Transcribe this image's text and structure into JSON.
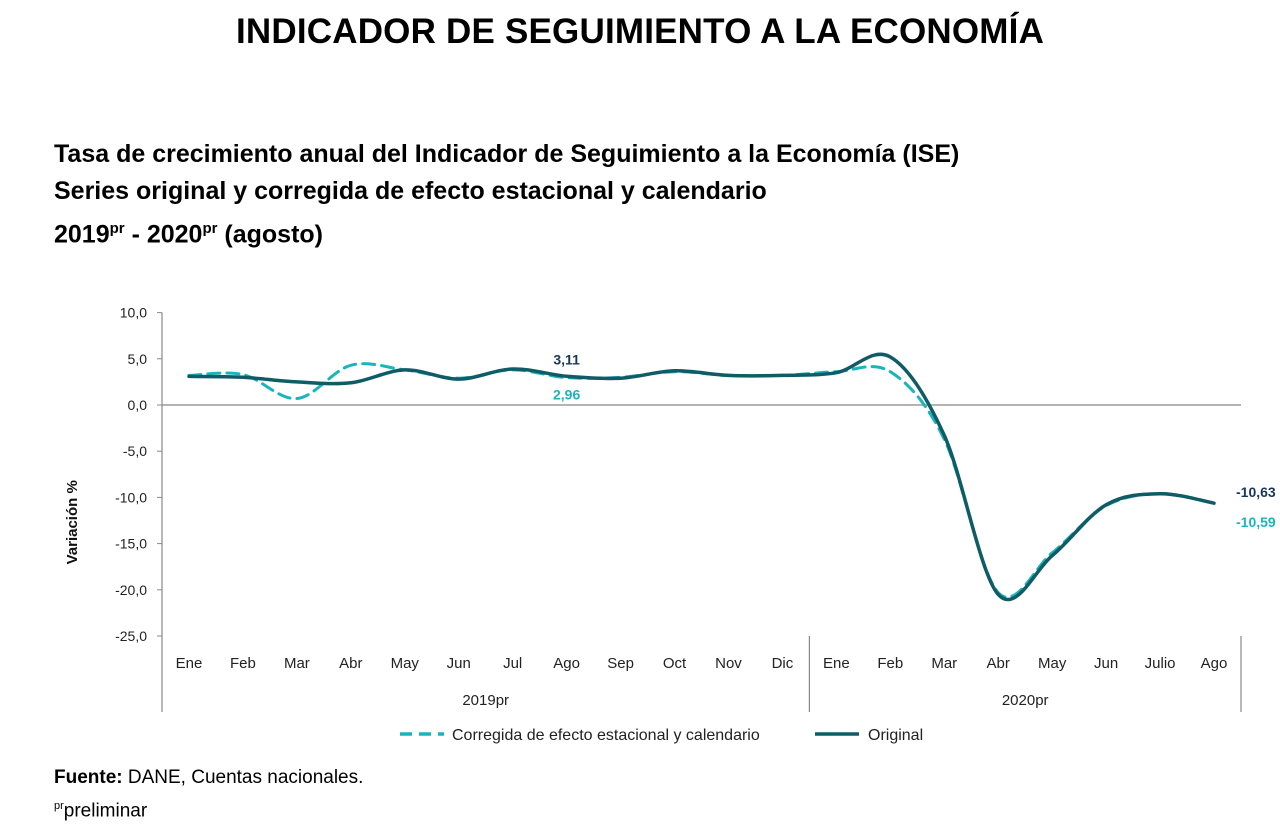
{
  "page": {
    "main_title": "INDICADOR DE SEGUIMIENTO A LA ECONOMÍA",
    "subtitle_line1": "Tasa de crecimiento anual del Indicador de Seguimiento a la Economía (ISE)",
    "subtitle_line2": "Series original y corregida de efecto estacional y calendario",
    "subtitle_line3_a": "2019",
    "subtitle_line3_sup1": "pr",
    "subtitle_line3_b": " - 2020",
    "subtitle_line3_sup2": "pr",
    "subtitle_line3_c": " (agosto)",
    "footer_source_label": "Fuente:",
    "footer_source_text": " DANE, Cuentas nacionales.",
    "footer_note_sup": "pr",
    "footer_note_text": "preliminar"
  },
  "colors": {
    "original": "#0f5c66",
    "corrected": "#1ab5bc",
    "axis": "#888888",
    "label_dark": "#17375e"
  },
  "chart_data": {
    "type": "line",
    "title": "Tasa de crecimiento anual del Indicador de Seguimiento a la Economía (ISE)",
    "xlabel": "",
    "ylabel": "Variación %",
    "ylim": [
      -25,
      10
    ],
    "yticks": [
      10,
      5,
      0,
      -5,
      -10,
      -15,
      -20,
      -25
    ],
    "ytick_labels": [
      "10,0",
      "5,0",
      "0,0",
      "-5,0",
      "-10,0",
      "-15,0",
      "-20,0",
      "-25,0"
    ],
    "categories": [
      "Ene",
      "Feb",
      "Mar",
      "Abr",
      "May",
      "Jun",
      "Jul",
      "Ago",
      "Sep",
      "Oct",
      "Nov",
      "Dic",
      "Ene",
      "Feb",
      "Mar",
      "Abr",
      "May",
      "Jun",
      "Julio",
      "Ago"
    ],
    "groups": [
      {
        "label": "2019pr",
        "start": 0,
        "end": 11
      },
      {
        "label": "2020pr",
        "start": 12,
        "end": 19
      }
    ],
    "series": [
      {
        "name": "Corregida de efecto estacional y calendario",
        "style": "dashed",
        "values": [
          3.2,
          3.3,
          0.7,
          4.3,
          3.8,
          2.9,
          3.8,
          2.96,
          3.0,
          3.6,
          3.2,
          3.2,
          3.6,
          3.6,
          -3.7,
          -20.3,
          -16.0,
          -10.9,
          -9.6,
          -10.59
        ]
      },
      {
        "name": "Original",
        "style": "solid",
        "values": [
          3.1,
          3.0,
          2.5,
          2.4,
          3.8,
          2.8,
          3.9,
          3.11,
          2.9,
          3.7,
          3.2,
          3.2,
          3.5,
          5.2,
          -3.3,
          -20.5,
          -16.3,
          -10.8,
          -9.6,
          -10.63
        ]
      }
    ],
    "annotations": [
      {
        "text": "3,11",
        "index": 7,
        "series": "Original",
        "position": "above"
      },
      {
        "text": "2,96",
        "index": 7,
        "series": "Corregida de efecto estacional y calendario",
        "position": "below"
      },
      {
        "text": "-10,63",
        "index": 19,
        "series": "Original",
        "position": "right-above"
      },
      {
        "text": "-10,59",
        "index": 19,
        "series": "Corregida de efecto estacional y calendario",
        "position": "right-below"
      }
    ],
    "legend": {
      "placement": "bottom",
      "entries": [
        "Corregida de efecto estacional y calendario",
        "Original"
      ]
    }
  }
}
